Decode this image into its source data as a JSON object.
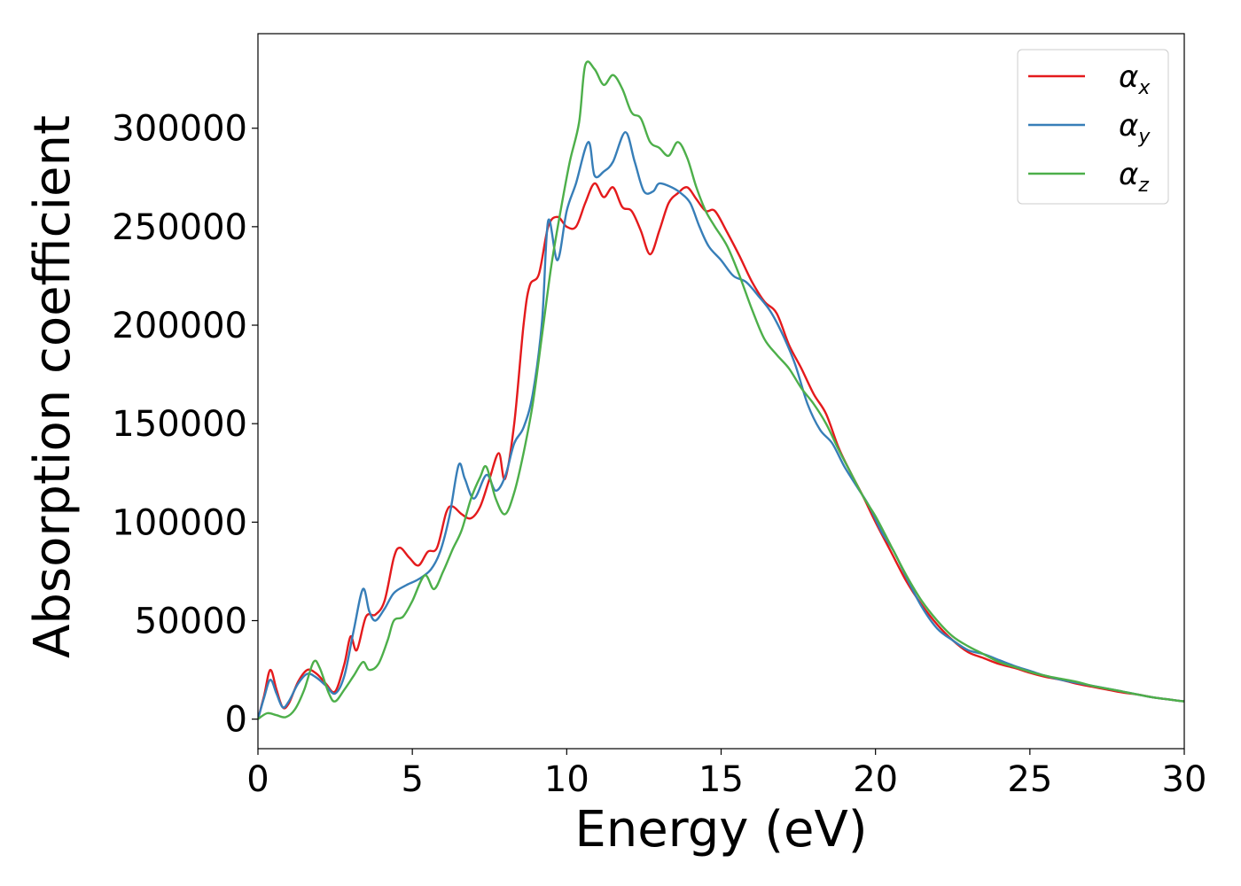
{
  "chart_data": {
    "type": "line",
    "title": "",
    "xlabel": "Energy (eV)",
    "ylabel": "Absorption coefficient",
    "xlim": [
      0,
      30
    ],
    "ylim": [
      -15000,
      348000
    ],
    "x_ticks": [
      0,
      5,
      10,
      15,
      20,
      25,
      30
    ],
    "y_ticks": [
      0,
      50000,
      100000,
      150000,
      200000,
      250000,
      300000
    ],
    "grid": false,
    "legend_position": "top-right",
    "series": [
      {
        "name": "α_x",
        "label_base": "α",
        "label_sub": "x",
        "color": "#e41a1c",
        "points": [
          [
            0,
            0
          ],
          [
            0.2,
            12000
          ],
          [
            0.4,
            25000
          ],
          [
            0.6,
            15000
          ],
          [
            0.8,
            6000
          ],
          [
            1.0,
            8000
          ],
          [
            1.3,
            19000
          ],
          [
            1.6,
            25000
          ],
          [
            1.9,
            23000
          ],
          [
            2.2,
            18000
          ],
          [
            2.5,
            14000
          ],
          [
            2.8,
            28000
          ],
          [
            3.0,
            42000
          ],
          [
            3.2,
            35000
          ],
          [
            3.5,
            52000
          ],
          [
            3.8,
            53000
          ],
          [
            4.1,
            60000
          ],
          [
            4.4,
            82000
          ],
          [
            4.6,
            87000
          ],
          [
            4.9,
            82000
          ],
          [
            5.2,
            78000
          ],
          [
            5.5,
            85000
          ],
          [
            5.8,
            87000
          ],
          [
            6.1,
            105000
          ],
          [
            6.3,
            108000
          ],
          [
            6.6,
            104000
          ],
          [
            6.9,
            102000
          ],
          [
            7.2,
            108000
          ],
          [
            7.5,
            122000
          ],
          [
            7.8,
            135000
          ],
          [
            8.0,
            122000
          ],
          [
            8.3,
            150000
          ],
          [
            8.6,
            200000
          ],
          [
            8.8,
            220000
          ],
          [
            9.1,
            226000
          ],
          [
            9.4,
            250000
          ],
          [
            9.7,
            255000
          ],
          [
            10.0,
            250000
          ],
          [
            10.3,
            250000
          ],
          [
            10.6,
            262000
          ],
          [
            10.9,
            272000
          ],
          [
            11.2,
            265000
          ],
          [
            11.5,
            270000
          ],
          [
            11.8,
            260000
          ],
          [
            12.1,
            258000
          ],
          [
            12.4,
            248000
          ],
          [
            12.7,
            236000
          ],
          [
            13.0,
            248000
          ],
          [
            13.3,
            262000
          ],
          [
            13.6,
            267000
          ],
          [
            13.9,
            270000
          ],
          [
            14.2,
            264000
          ],
          [
            14.5,
            258000
          ],
          [
            14.8,
            258000
          ],
          [
            15.2,
            247000
          ],
          [
            15.6,
            235000
          ],
          [
            16.0,
            222000
          ],
          [
            16.4,
            212000
          ],
          [
            16.8,
            206000
          ],
          [
            17.2,
            190000
          ],
          [
            17.6,
            178000
          ],
          [
            18.0,
            165000
          ],
          [
            18.4,
            155000
          ],
          [
            18.8,
            138000
          ],
          [
            19.2,
            125000
          ],
          [
            19.6,
            113000
          ],
          [
            20.0,
            100000
          ],
          [
            20.5,
            85000
          ],
          [
            21.0,
            70000
          ],
          [
            21.5,
            58000
          ],
          [
            22.0,
            48000
          ],
          [
            22.5,
            40000
          ],
          [
            23.0,
            34000
          ],
          [
            23.5,
            31000
          ],
          [
            24.0,
            28000
          ],
          [
            24.5,
            26000
          ],
          [
            25.0,
            23500
          ],
          [
            25.5,
            21500
          ],
          [
            26.0,
            20000
          ],
          [
            26.5,
            18000
          ],
          [
            27.0,
            16500
          ],
          [
            27.5,
            15000
          ],
          [
            28.0,
            13500
          ],
          [
            28.5,
            12500
          ],
          [
            29.0,
            11000
          ],
          [
            29.5,
            10000
          ],
          [
            30.0,
            9000
          ]
        ]
      },
      {
        "name": "α_y",
        "label_base": "α",
        "label_sub": "y",
        "color": "#377eb8",
        "points": [
          [
            0,
            0
          ],
          [
            0.2,
            11000
          ],
          [
            0.4,
            20000
          ],
          [
            0.6,
            13000
          ],
          [
            0.8,
            6000
          ],
          [
            1.0,
            9000
          ],
          [
            1.3,
            18000
          ],
          [
            1.6,
            23000
          ],
          [
            1.9,
            21000
          ],
          [
            2.2,
            17000
          ],
          [
            2.5,
            13000
          ],
          [
            2.8,
            22000
          ],
          [
            3.1,
            45000
          ],
          [
            3.4,
            66000
          ],
          [
            3.6,
            55000
          ],
          [
            3.8,
            50000
          ],
          [
            4.1,
            56000
          ],
          [
            4.4,
            64000
          ],
          [
            4.8,
            68000
          ],
          [
            5.2,
            71000
          ],
          [
            5.6,
            76000
          ],
          [
            5.9,
            85000
          ],
          [
            6.2,
            103000
          ],
          [
            6.5,
            129000
          ],
          [
            6.7,
            122000
          ],
          [
            7.0,
            112000
          ],
          [
            7.4,
            124000
          ],
          [
            7.7,
            116000
          ],
          [
            8.0,
            123000
          ],
          [
            8.3,
            140000
          ],
          [
            8.6,
            148000
          ],
          [
            8.9,
            165000
          ],
          [
            9.2,
            202000
          ],
          [
            9.4,
            253000
          ],
          [
            9.7,
            233000
          ],
          [
            10.0,
            258000
          ],
          [
            10.3,
            272000
          ],
          [
            10.7,
            293000
          ],
          [
            10.9,
            276000
          ],
          [
            11.2,
            278000
          ],
          [
            11.5,
            283000
          ],
          [
            11.9,
            298000
          ],
          [
            12.2,
            283000
          ],
          [
            12.5,
            268000
          ],
          [
            12.8,
            268000
          ],
          [
            13.0,
            272000
          ],
          [
            13.4,
            270000
          ],
          [
            13.7,
            267000
          ],
          [
            14.0,
            262000
          ],
          [
            14.3,
            250000
          ],
          [
            14.6,
            240000
          ],
          [
            15.0,
            233000
          ],
          [
            15.4,
            225000
          ],
          [
            15.8,
            222000
          ],
          [
            16.2,
            215000
          ],
          [
            16.6,
            207000
          ],
          [
            17.0,
            195000
          ],
          [
            17.4,
            180000
          ],
          [
            17.8,
            160000
          ],
          [
            18.2,
            147000
          ],
          [
            18.6,
            140000
          ],
          [
            19.0,
            128000
          ],
          [
            19.4,
            118000
          ],
          [
            19.8,
            108000
          ],
          [
            20.2,
            95000
          ],
          [
            20.6,
            85000
          ],
          [
            21.0,
            72000
          ],
          [
            21.5,
            57000
          ],
          [
            22.0,
            46000
          ],
          [
            22.5,
            40000
          ],
          [
            23.0,
            35000
          ],
          [
            23.5,
            33000
          ],
          [
            24.0,
            30000
          ],
          [
            24.5,
            27000
          ],
          [
            25.0,
            24500
          ],
          [
            25.5,
            22000
          ],
          [
            26.0,
            20000
          ],
          [
            26.5,
            18500
          ],
          [
            27.0,
            17000
          ],
          [
            27.5,
            15500
          ],
          [
            28.0,
            14000
          ],
          [
            28.5,
            12500
          ],
          [
            29.0,
            11000
          ],
          [
            29.5,
            10000
          ],
          [
            30.0,
            9000
          ]
        ]
      },
      {
        "name": "α_z",
        "label_base": "α",
        "label_sub": "z",
        "color": "#4daf4a",
        "points": [
          [
            0,
            0
          ],
          [
            0.3,
            3000
          ],
          [
            0.6,
            2000
          ],
          [
            0.9,
            1000
          ],
          [
            1.2,
            5000
          ],
          [
            1.5,
            15000
          ],
          [
            1.8,
            29000
          ],
          [
            2.0,
            26000
          ],
          [
            2.3,
            13000
          ],
          [
            2.5,
            9000
          ],
          [
            2.8,
            15000
          ],
          [
            3.1,
            22000
          ],
          [
            3.4,
            29000
          ],
          [
            3.6,
            25000
          ],
          [
            3.9,
            28000
          ],
          [
            4.2,
            40000
          ],
          [
            4.4,
            50000
          ],
          [
            4.7,
            52000
          ],
          [
            5.0,
            60000
          ],
          [
            5.4,
            73000
          ],
          [
            5.7,
            66000
          ],
          [
            6.0,
            75000
          ],
          [
            6.3,
            86000
          ],
          [
            6.6,
            96000
          ],
          [
            6.9,
            112000
          ],
          [
            7.2,
            123000
          ],
          [
            7.4,
            128000
          ],
          [
            7.7,
            112000
          ],
          [
            8.0,
            104000
          ],
          [
            8.3,
            115000
          ],
          [
            8.6,
            135000
          ],
          [
            8.9,
            160000
          ],
          [
            9.2,
            195000
          ],
          [
            9.5,
            230000
          ],
          [
            9.8,
            258000
          ],
          [
            10.1,
            283000
          ],
          [
            10.4,
            303000
          ],
          [
            10.6,
            332000
          ],
          [
            10.9,
            330000
          ],
          [
            11.2,
            322000
          ],
          [
            11.5,
            327000
          ],
          [
            11.8,
            320000
          ],
          [
            12.1,
            308000
          ],
          [
            12.4,
            305000
          ],
          [
            12.7,
            293000
          ],
          [
            13.0,
            290000
          ],
          [
            13.3,
            286000
          ],
          [
            13.6,
            293000
          ],
          [
            13.9,
            285000
          ],
          [
            14.2,
            270000
          ],
          [
            14.5,
            258000
          ],
          [
            14.8,
            250000
          ],
          [
            15.2,
            240000
          ],
          [
            15.6,
            225000
          ],
          [
            16.0,
            208000
          ],
          [
            16.4,
            193000
          ],
          [
            16.8,
            185000
          ],
          [
            17.2,
            178000
          ],
          [
            17.6,
            168000
          ],
          [
            18.0,
            160000
          ],
          [
            18.4,
            150000
          ],
          [
            18.8,
            137000
          ],
          [
            19.2,
            125000
          ],
          [
            19.6,
            113000
          ],
          [
            20.0,
            103000
          ],
          [
            20.5,
            88000
          ],
          [
            21.0,
            73000
          ],
          [
            21.5,
            60000
          ],
          [
            22.0,
            50000
          ],
          [
            22.5,
            42000
          ],
          [
            23.0,
            37000
          ],
          [
            23.5,
            33000
          ],
          [
            24.0,
            29000
          ],
          [
            24.5,
            26500
          ],
          [
            25.0,
            24000
          ],
          [
            25.5,
            22000
          ],
          [
            26.0,
            20500
          ],
          [
            26.5,
            19000
          ],
          [
            27.0,
            17000
          ],
          [
            27.5,
            15500
          ],
          [
            28.0,
            14000
          ],
          [
            28.5,
            12500
          ],
          [
            29.0,
            11000
          ],
          [
            29.5,
            10000
          ],
          [
            30.0,
            9000
          ]
        ]
      }
    ]
  }
}
